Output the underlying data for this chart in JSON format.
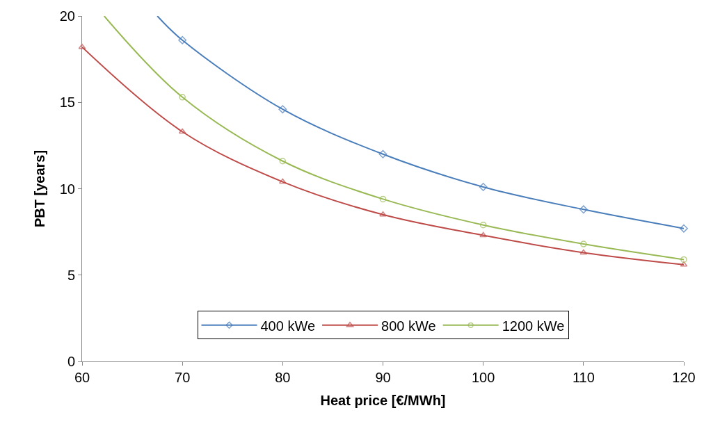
{
  "chart_data": {
    "type": "line",
    "xlabel": "Heat price [€/MWh]",
    "ylabel": "PBT [years]",
    "xlim": [
      60,
      120
    ],
    "xticks": [
      60,
      70,
      80,
      90,
      100,
      110,
      120
    ],
    "ylim": [
      0,
      20
    ],
    "yticks": [
      0,
      5,
      10,
      15,
      20
    ],
    "legend": "bottom",
    "series": [
      {
        "name": "400 kWe",
        "color": "#4a7ebb",
        "marker": "diamond",
        "x": [
          67.5,
          70,
          80,
          90,
          100,
          110,
          120
        ],
        "values": [
          20,
          18.6,
          14.6,
          12.0,
          10.1,
          8.8,
          7.7
        ]
      },
      {
        "name": "800 kWe",
        "color": "#be4b48",
        "marker": "triangle",
        "x": [
          60,
          70,
          80,
          90,
          100,
          110,
          120
        ],
        "values": [
          18.2,
          13.3,
          10.4,
          8.5,
          7.3,
          6.3,
          5.6
        ]
      },
      {
        "name": "1200 kWe",
        "color": "#98b954",
        "marker": "circle",
        "x": [
          62.2,
          70,
          80,
          90,
          100,
          110,
          120
        ],
        "values": [
          20,
          15.3,
          11.6,
          9.4,
          7.9,
          6.8,
          5.9
        ]
      }
    ]
  }
}
